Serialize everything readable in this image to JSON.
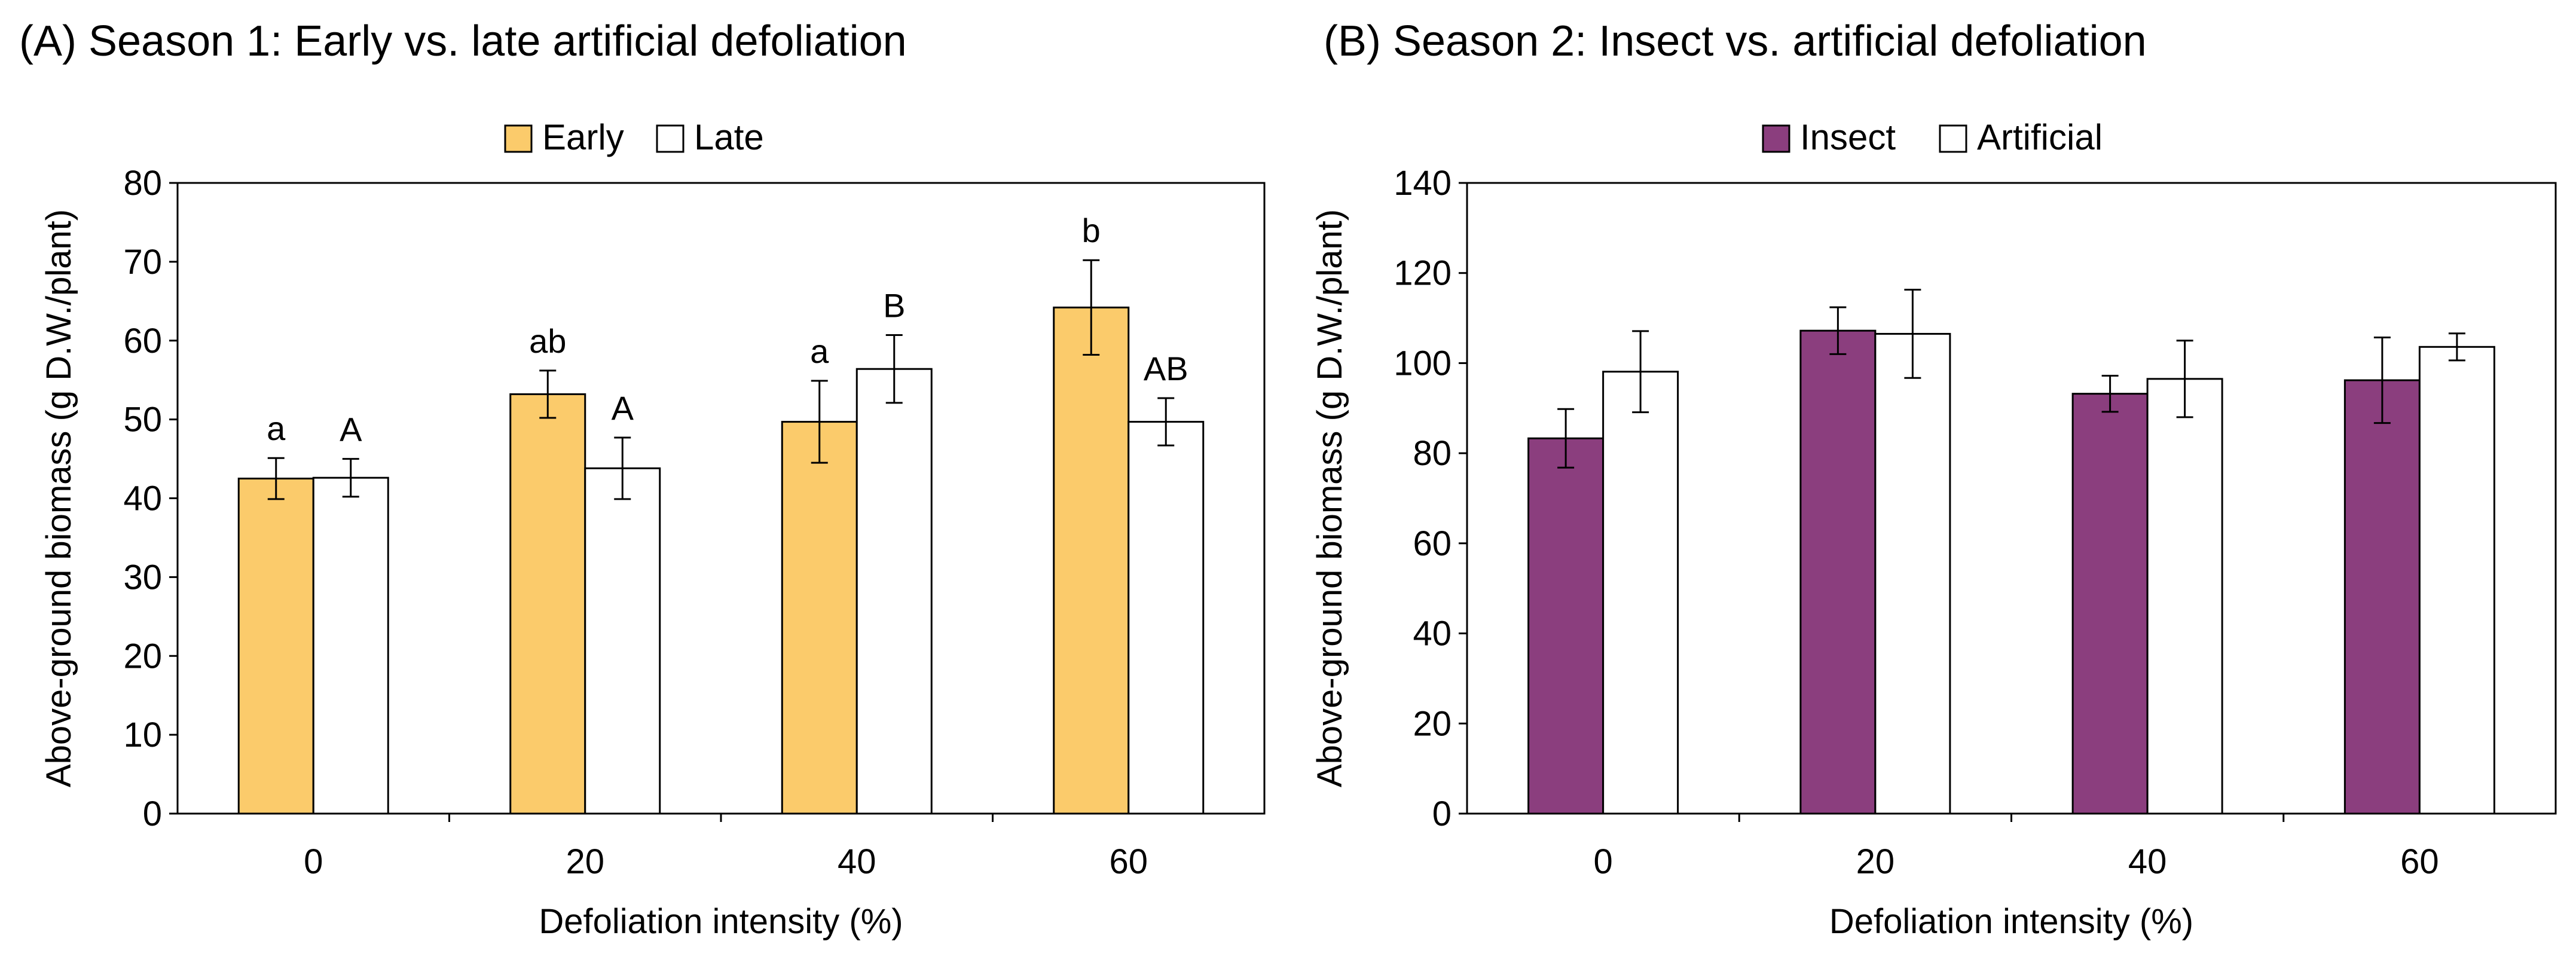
{
  "chart_data": [
    {
      "type": "bar",
      "title": "(A) Season 1: Early vs. late artificial defoliation",
      "xlabel": "Defoliation intensity (%)",
      "ylabel": "Above-ground biomass (g D.W./plant)",
      "categories": [
        "0",
        "20",
        "40",
        "60"
      ],
      "ylim": [
        0,
        80
      ],
      "yticks": [
        0,
        10,
        20,
        30,
        40,
        50,
        60,
        70,
        80
      ],
      "legend_position": "top-center",
      "series": [
        {
          "name": "Early",
          "color": "#FBCB6B",
          "values": [
            42.5,
            53.2,
            49.7,
            64.2
          ],
          "errors": [
            2.6,
            3.0,
            5.2,
            6.0
          ],
          "letters": [
            "a",
            "ab",
            "a",
            "b"
          ]
        },
        {
          "name": "Late",
          "color": "#FFFFFF",
          "values": [
            42.6,
            43.8,
            56.4,
            49.7
          ],
          "errors": [
            2.4,
            3.9,
            4.3,
            3.0
          ],
          "letters": [
            "A",
            "A",
            "B",
            "AB"
          ]
        }
      ]
    },
    {
      "type": "bar",
      "title": "(B) Season 2: Insect vs. artificial defoliation",
      "xlabel": "Defoliation intensity (%)",
      "ylabel": "Above-ground biomass (g D.W./plant)",
      "categories": [
        "0",
        "20",
        "40",
        "60"
      ],
      "ylim": [
        0,
        140
      ],
      "yticks": [
        0,
        20,
        40,
        60,
        80,
        100,
        120,
        140
      ],
      "legend_position": "top-center",
      "series": [
        {
          "name": "Insect",
          "color": "#8B3E7E",
          "values": [
            83.3,
            107.2,
            93.2,
            96.2
          ],
          "errors": [
            6.5,
            5.2,
            4.0,
            9.5
          ],
          "letters": [
            "",
            "",
            "",
            ""
          ]
        },
        {
          "name": "Artificial",
          "color": "#FFFFFF",
          "values": [
            98.1,
            106.5,
            96.5,
            103.6
          ],
          "errors": [
            9.0,
            9.8,
            8.5,
            3.0
          ],
          "letters": [
            "",
            "",
            "",
            ""
          ]
        }
      ]
    }
  ]
}
